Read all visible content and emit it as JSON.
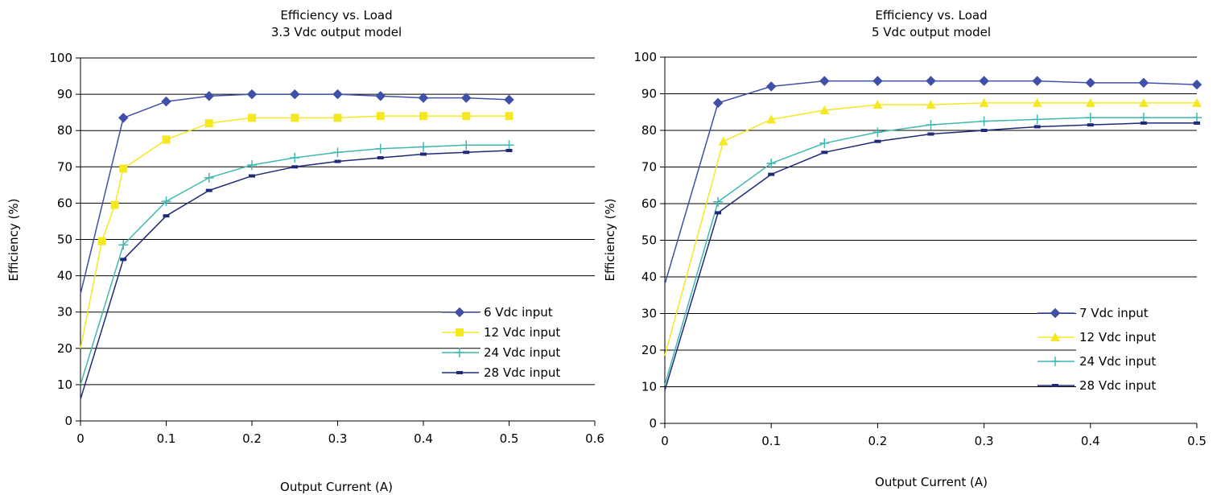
{
  "chart_data": [
    {
      "type": "line",
      "title": "Efficiency vs. Load",
      "subtitle": "3.3 Vdc output model",
      "xlabel": "Output Current (A)",
      "ylabel": "Efficiency (%)",
      "xlim": [
        0,
        0.6
      ],
      "ylim": [
        0,
        100
      ],
      "xticks": [
        0,
        0.1,
        0.2,
        0.3,
        0.4,
        0.5,
        0.6
      ],
      "xtick_labels": [
        "0",
        "0.1",
        "0.2",
        "0.3",
        "0.4",
        "0.5",
        "0.6"
      ],
      "yticks": [
        0,
        10,
        20,
        30,
        40,
        50,
        60,
        70,
        80,
        90,
        100
      ],
      "ytick_labels": [
        "0",
        "10",
        "20",
        "30",
        "40",
        "50",
        "60",
        "70",
        "80",
        "90",
        "100"
      ],
      "grid": "horizontal",
      "legend_position": "bottom-right",
      "series": [
        {
          "name": "6 Vdc input",
          "color": "#4050a8",
          "marker": "diamond",
          "x": [
            0,
            0.05,
            0.1,
            0.15,
            0.2,
            0.25,
            0.3,
            0.35,
            0.4,
            0.45,
            0.5
          ],
          "y": [
            35,
            83.5,
            88,
            89.5,
            90,
            90,
            90,
            89.5,
            89,
            89,
            88.5
          ]
        },
        {
          "name": "12 Vdc input",
          "color": "#f5e820",
          "marker": "square",
          "x": [
            0,
            0.025,
            0.04,
            0.05,
            0.1,
            0.15,
            0.2,
            0.25,
            0.3,
            0.35,
            0.4,
            0.45,
            0.5
          ],
          "y": [
            20,
            49.5,
            59.5,
            69.5,
            77.5,
            82,
            83.5,
            83.5,
            83.5,
            84,
            84,
            84,
            84
          ]
        },
        {
          "name": "24 Vdc input",
          "color": "#3fb8b0",
          "marker": "plus",
          "x": [
            0,
            0.05,
            0.1,
            0.15,
            0.2,
            0.25,
            0.3,
            0.35,
            0.4,
            0.45,
            0.5
          ],
          "y": [
            10,
            48.5,
            60.5,
            67,
            70.5,
            72.5,
            74,
            75,
            75.5,
            76,
            76
          ]
        },
        {
          "name": "28 Vdc input",
          "color": "#1e2a78",
          "marker": "dash",
          "x": [
            0,
            0.05,
            0.1,
            0.15,
            0.2,
            0.25,
            0.3,
            0.35,
            0.4,
            0.45,
            0.5
          ],
          "y": [
            6,
            44.5,
            56.5,
            63.5,
            67.5,
            70,
            71.5,
            72.5,
            73.5,
            74,
            74.5
          ]
        }
      ]
    },
    {
      "type": "line",
      "title": "Efficiency vs. Load",
      "subtitle": "5 Vdc output model",
      "xlabel": "Output Current (A)",
      "ylabel": "Efficiency (%)",
      "xlim": [
        0,
        0.5
      ],
      "ylim": [
        0,
        100
      ],
      "xticks": [
        0,
        0.1,
        0.2,
        0.3,
        0.4,
        0.5
      ],
      "xtick_labels": [
        "0",
        "0.1",
        "0.2",
        "0.3",
        "0.4",
        "0.5"
      ],
      "yticks": [
        0,
        10,
        20,
        30,
        40,
        50,
        60,
        70,
        80,
        90,
        100
      ],
      "ytick_labels": [
        "0",
        "10",
        "20",
        "30",
        "40",
        "50",
        "60",
        "70",
        "80",
        "90",
        "100"
      ],
      "grid": "horizontal",
      "legend_position": "bottom-right",
      "series": [
        {
          "name": "7 Vdc input",
          "color": "#4050a8",
          "marker": "diamond",
          "x": [
            0,
            0.05,
            0.1,
            0.15,
            0.2,
            0.25,
            0.3,
            0.35,
            0.4,
            0.45,
            0.5
          ],
          "y": [
            38,
            87.5,
            92,
            93.5,
            93.5,
            93.5,
            93.5,
            93.5,
            93,
            93,
            92.5
          ]
        },
        {
          "name": "12 Vdc input",
          "color": "#f5e820",
          "marker": "triangle",
          "x": [
            0,
            0.055,
            0.1,
            0.15,
            0.2,
            0.25,
            0.3,
            0.35,
            0.4,
            0.45,
            0.5
          ],
          "y": [
            18.5,
            77,
            83,
            85.5,
            87,
            87,
            87.5,
            87.5,
            87.5,
            87.5,
            87.5
          ]
        },
        {
          "name": "24 Vdc input",
          "color": "#3fb8b0",
          "marker": "plus",
          "x": [
            0,
            0.05,
            0.1,
            0.15,
            0.2,
            0.25,
            0.3,
            0.35,
            0.4,
            0.45,
            0.5
          ],
          "y": [
            10.5,
            60.5,
            71,
            76.5,
            79.5,
            81.5,
            82.5,
            83,
            83.5,
            83.5,
            83.5
          ]
        },
        {
          "name": "28 Vdc input",
          "color": "#1e2a78",
          "marker": "dash",
          "x": [
            0,
            0.05,
            0.1,
            0.15,
            0.2,
            0.25,
            0.3,
            0.35,
            0.4,
            0.45,
            0.5
          ],
          "y": [
            9,
            57.5,
            68,
            74,
            77,
            79,
            80,
            81,
            81.5,
            82,
            82
          ]
        }
      ]
    }
  ]
}
